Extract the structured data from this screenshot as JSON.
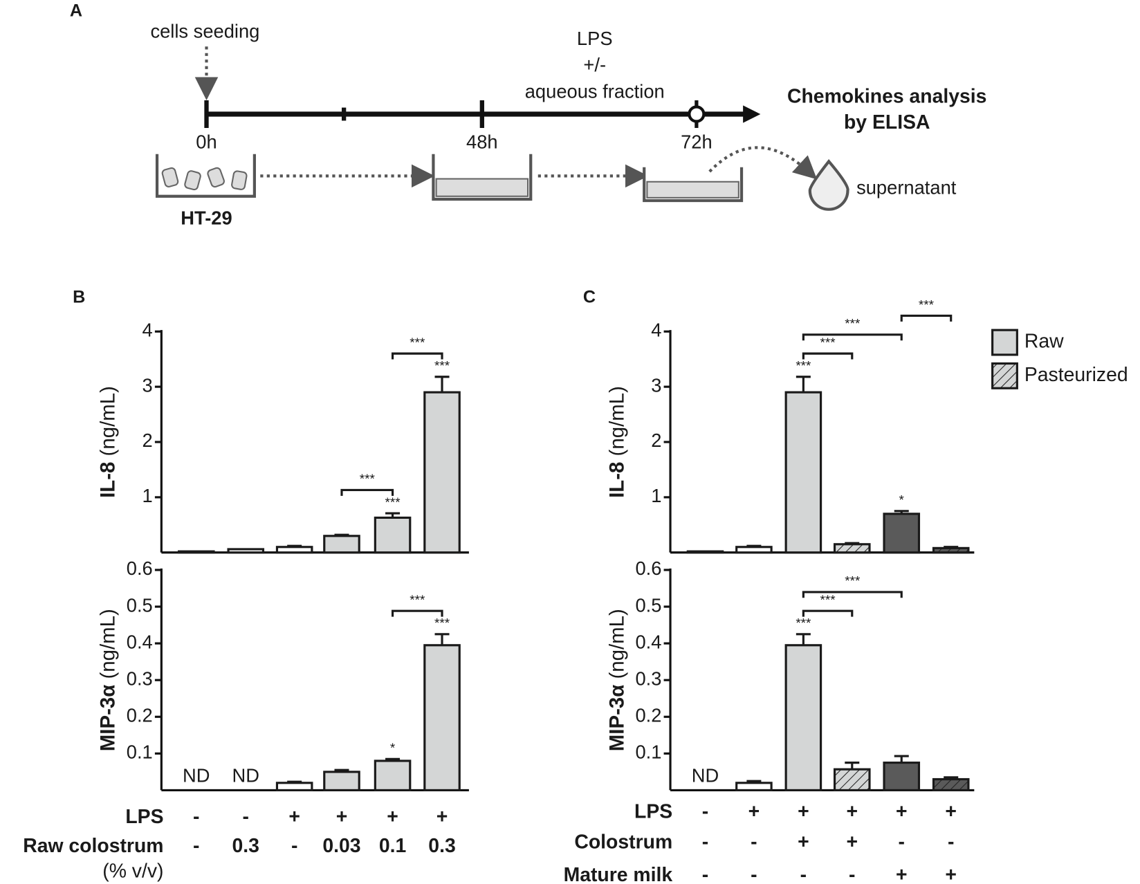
{
  "diagram": {
    "panel": "A",
    "seeding": "cells seeding",
    "treatment": [
      "LPS",
      "+/-",
      "aqueous  fraction"
    ],
    "analysis": [
      "Chemokines analysis",
      "by ELISA"
    ],
    "times": [
      "0h",
      "48h",
      "72h"
    ],
    "cell_line": "HT-29",
    "sample": "supernatant"
  },
  "chart_data": [
    {
      "type": "bar",
      "panel": "B",
      "ylabel": {
        "bold": "IL-8",
        "unit": "(ng/mL)"
      },
      "ylim": [
        0,
        4
      ],
      "yticks": [
        1,
        2,
        3,
        4
      ],
      "values": [
        0.02,
        0.06,
        0.1,
        0.3,
        0.63,
        2.9
      ],
      "errors": [
        0,
        0,
        0.02,
        0.02,
        0.08,
        0.28
      ],
      "fills": [
        "#ffffff",
        "#ffffff",
        "#ffffff",
        "#d4d6d6",
        "#d4d6d6",
        "#d4d6d6"
      ],
      "hatched": [
        false,
        false,
        false,
        false,
        false,
        false
      ],
      "significance": [
        null,
        null,
        null,
        null,
        "***",
        "***"
      ],
      "comparisons": [
        {
          "bars": [
            3,
            4
          ],
          "label": "***"
        },
        {
          "bars": [
            4,
            5
          ],
          "label": "***"
        }
      ]
    },
    {
      "type": "bar",
      "ylabel": {
        "bold": "MIP-3α",
        "unit": "(ng/mL)"
      },
      "ylim": [
        0,
        0.6
      ],
      "yticks": [
        0.1,
        0.2,
        0.3,
        0.4,
        0.5,
        0.6
      ],
      "values": [
        null,
        null,
        0.02,
        0.05,
        0.08,
        0.395
      ],
      "value_labels": [
        "ND",
        "ND",
        null,
        null,
        null,
        null
      ],
      "errors": [
        0,
        0,
        0.003,
        0.005,
        0.005,
        0.03
      ],
      "fills": [
        "#ffffff",
        "#ffffff",
        "#ffffff",
        "#d4d6d6",
        "#d4d6d6",
        "#d4d6d6"
      ],
      "hatched": [
        false,
        false,
        false,
        false,
        false,
        false
      ],
      "significance": [
        null,
        null,
        null,
        null,
        "*",
        "***"
      ],
      "comparisons": [
        {
          "bars": [
            4,
            5
          ],
          "label": "***"
        }
      ],
      "conditions": [
        {
          "label": "LPS",
          "values": [
            "-",
            "-",
            "+",
            "+",
            "+",
            "+"
          ]
        },
        {
          "label": "Raw colostrum",
          "sublabel": "(% v/v)",
          "values": [
            "-",
            "0.3",
            "-",
            "0.03",
            "0.1",
            "0.3"
          ]
        }
      ]
    },
    {
      "type": "bar",
      "panel": "C",
      "ylabel": {
        "bold": "IL-8",
        "unit": "(ng/mL)"
      },
      "ylim": [
        0,
        4
      ],
      "yticks": [
        1,
        2,
        3,
        4
      ],
      "values": [
        0.02,
        0.1,
        2.9,
        0.15,
        0.7,
        0.08
      ],
      "errors": [
        0,
        0.02,
        0.28,
        0.02,
        0.05,
        0.02
      ],
      "fills": [
        "#ffffff",
        "#ffffff",
        "#d4d6d6",
        "#d4d6d6",
        "#5a5a5a",
        "#5a5a5a"
      ],
      "hatched": [
        false,
        false,
        false,
        true,
        false,
        true
      ],
      "significance": [
        null,
        null,
        "***",
        null,
        "*",
        null
      ],
      "comparisons": [
        {
          "bars": [
            2,
            3
          ],
          "label": "***"
        },
        {
          "bars": [
            2,
            4
          ],
          "label": "***"
        },
        {
          "bars": [
            4,
            5
          ],
          "label": "***"
        }
      ],
      "legend": {
        "position": "top-right",
        "entries": [
          {
            "name": "Raw",
            "color": "#d4d6d6",
            "hatched": false
          },
          {
            "name": "Pasteurized",
            "color": "#d4d6d6",
            "hatched": true
          }
        ]
      }
    },
    {
      "type": "bar",
      "ylabel": {
        "bold": "MIP-3α",
        "unit": "(ng/mL)"
      },
      "ylim": [
        0,
        0.6
      ],
      "yticks": [
        0.1,
        0.2,
        0.3,
        0.4,
        0.5,
        0.6
      ],
      "values": [
        null,
        0.02,
        0.395,
        0.057,
        0.075,
        0.03
      ],
      "value_labels": [
        "ND",
        null,
        null,
        null,
        null,
        null
      ],
      "errors": [
        0,
        0.005,
        0.03,
        0.018,
        0.018,
        0.005
      ],
      "fills": [
        "#ffffff",
        "#ffffff",
        "#d4d6d6",
        "#d4d6d6",
        "#5a5a5a",
        "#5a5a5a"
      ],
      "hatched": [
        false,
        false,
        false,
        true,
        false,
        true
      ],
      "significance": [
        null,
        null,
        "***",
        null,
        null,
        null
      ],
      "comparisons": [
        {
          "bars": [
            2,
            3
          ],
          "label": "***"
        },
        {
          "bars": [
            2,
            4
          ],
          "label": "***"
        }
      ],
      "conditions": [
        {
          "label": "LPS",
          "values": [
            "-",
            "+",
            "+",
            "+",
            "+",
            "+"
          ]
        },
        {
          "label": "Colostrum",
          "values": [
            "-",
            "-",
            "+",
            "+",
            "-",
            "-"
          ]
        },
        {
          "label": "Mature milk",
          "values": [
            "-",
            "-",
            "-",
            "-",
            "+",
            "+"
          ]
        }
      ]
    }
  ]
}
